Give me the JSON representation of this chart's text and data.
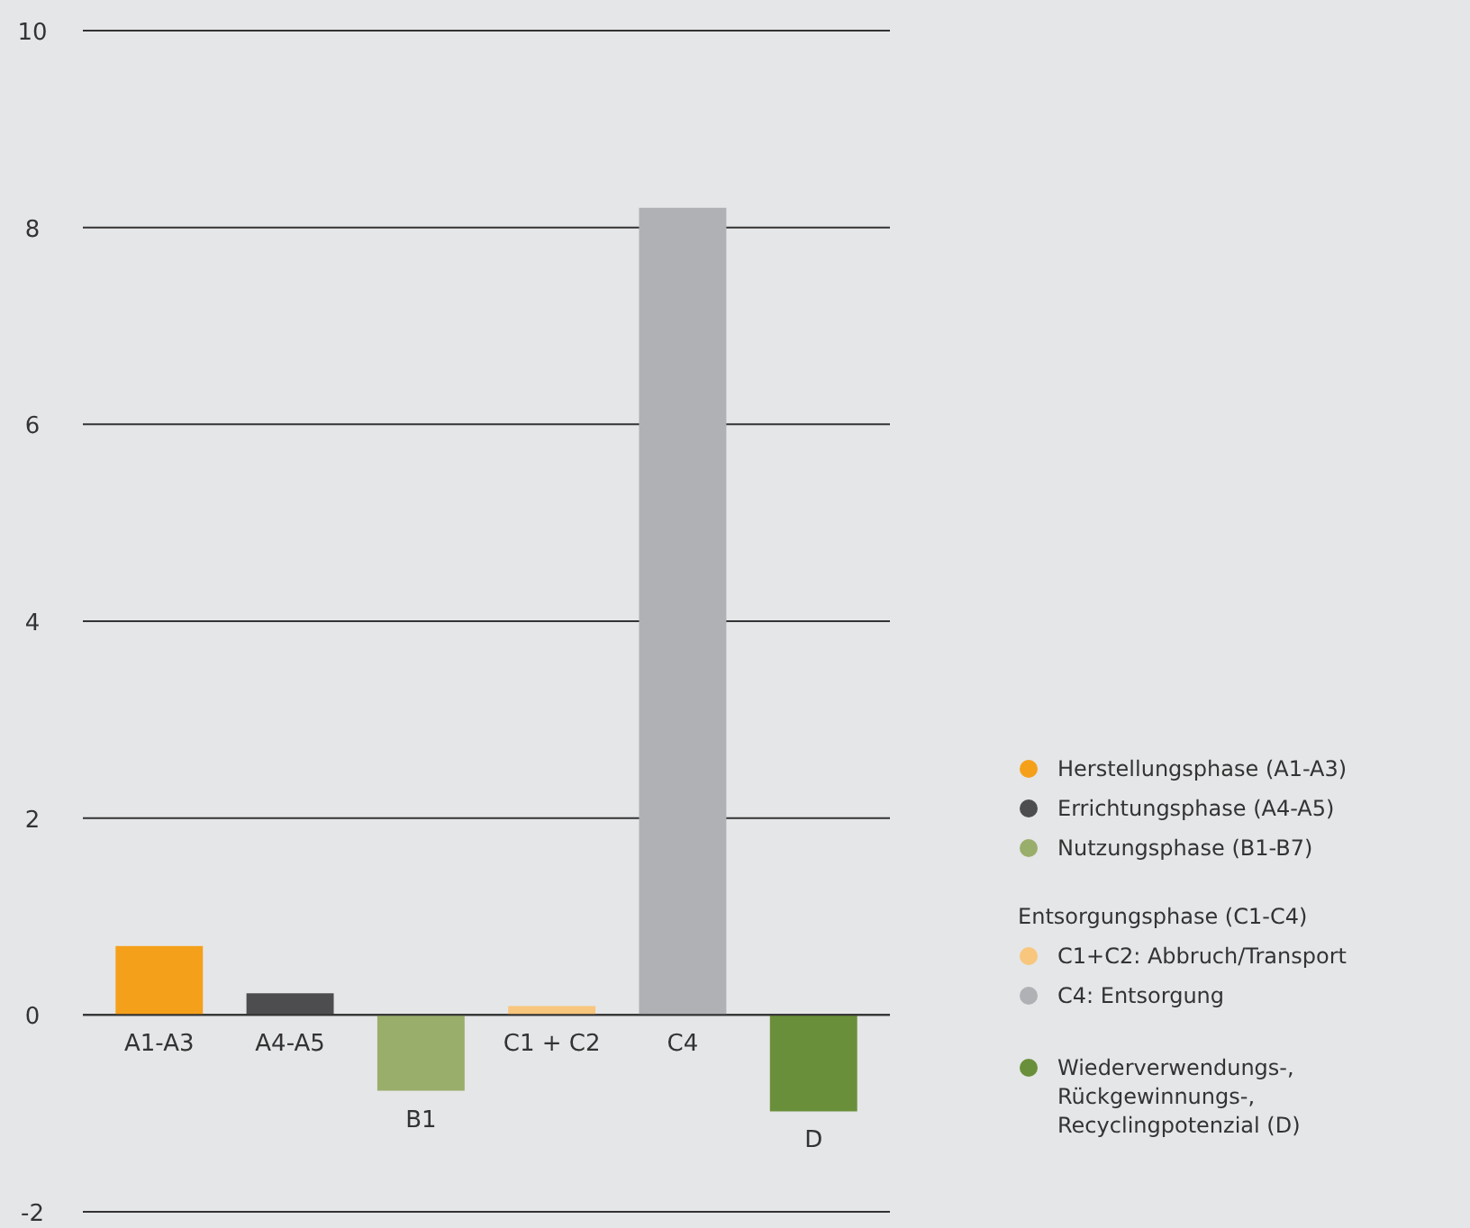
{
  "chart_data": {
    "type": "bar",
    "categories": [
      "A1-A3",
      "A4-A5",
      "B1",
      "C1 + C2",
      "C4",
      "D"
    ],
    "series": [
      {
        "name": "Herstellungsphase (A1-A3)",
        "color": "#f5a01a",
        "values": [
          0.7,
          null,
          null,
          null,
          null,
          null
        ]
      },
      {
        "name": "Errichtungsphase (A4-A5)",
        "color": "#4d4d4f",
        "values": [
          null,
          0.22,
          null,
          null,
          null,
          null
        ]
      },
      {
        "name": "Nutzungsphase (B1-B7)",
        "color": "#9aae6b",
        "values": [
          null,
          null,
          -0.77,
          null,
          null,
          null
        ]
      },
      {
        "name": "C1+C2: Abbruch/Transport",
        "color": "#f8c67c",
        "values": [
          null,
          null,
          null,
          0.09,
          null,
          null
        ]
      },
      {
        "name": "C4: Entsorgung",
        "color": "#b0b1b4",
        "values": [
          null,
          null,
          null,
          null,
          8.2,
          null
        ]
      },
      {
        "name": "Wiederverwendungs-, Rückgewinnungs-, Recyclingpotenzial (D)",
        "color": "#6a8f3a",
        "values": [
          null,
          null,
          null,
          null,
          null,
          -0.98
        ]
      }
    ],
    "annotations": [
      "Entsorgungsphase (C1-C4)"
    ],
    "ylim": [
      -2,
      10
    ],
    "yticks": [
      -2,
      0,
      2,
      4,
      6,
      8,
      10
    ],
    "grid": "y",
    "legend": "right"
  }
}
